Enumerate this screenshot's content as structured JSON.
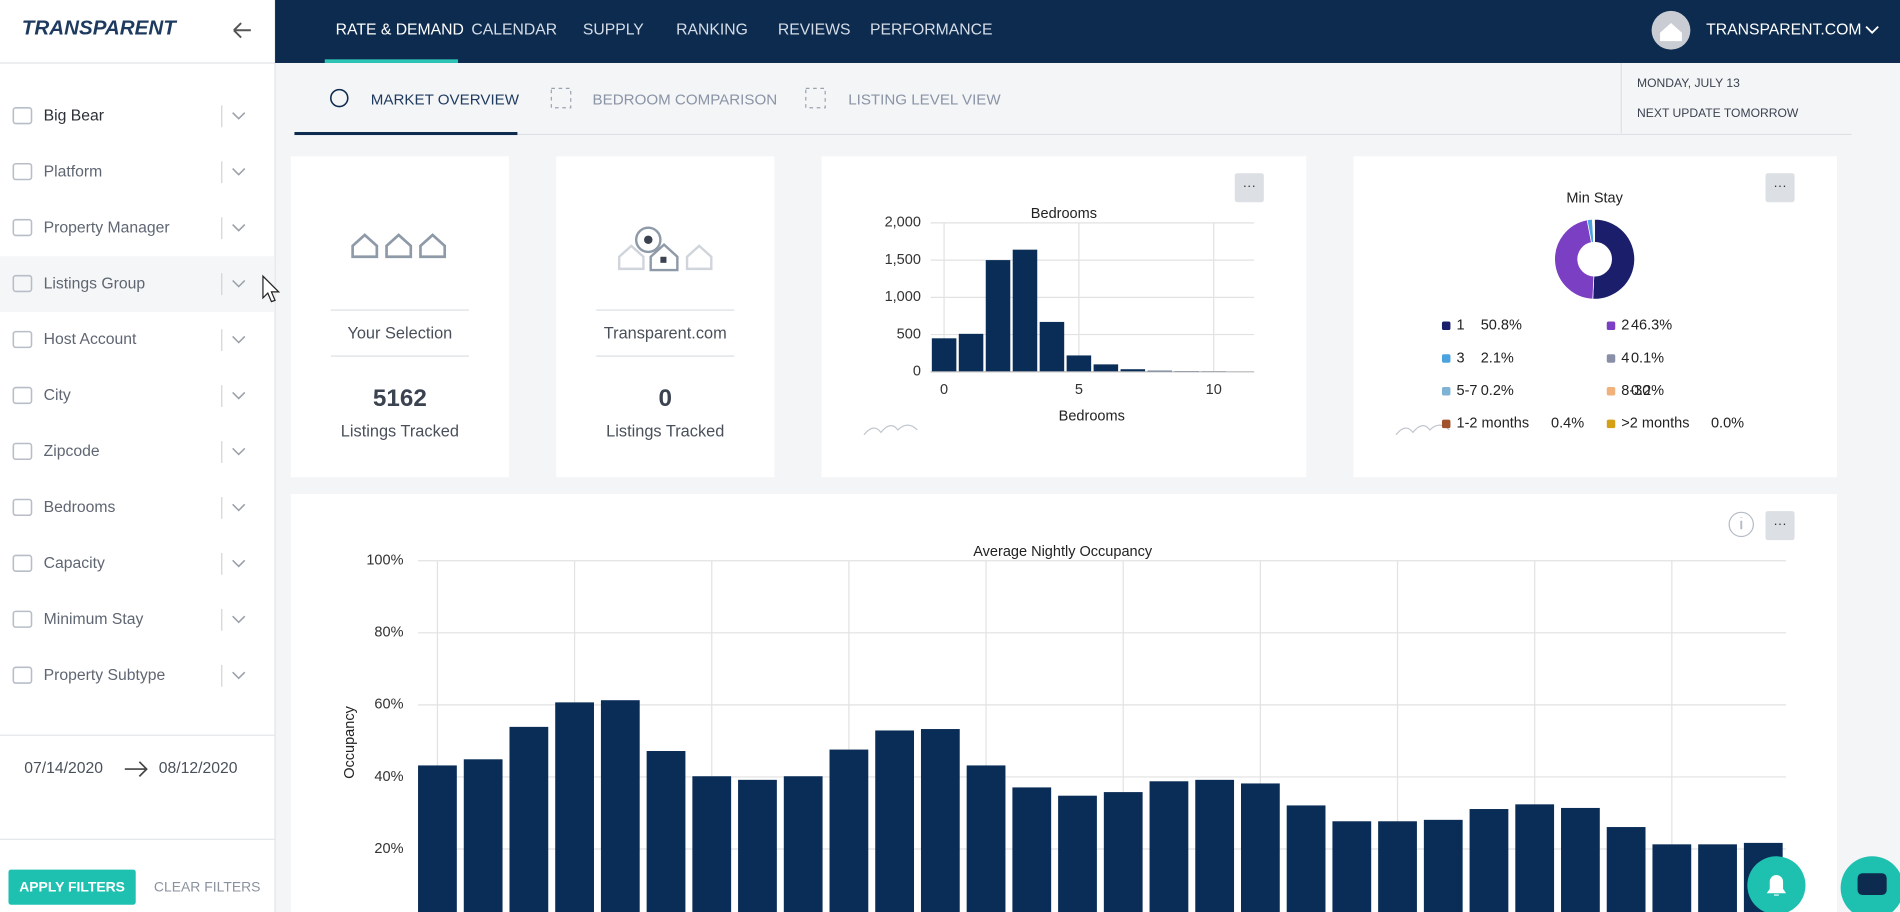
{
  "sidebar": {
    "logo": "TRANSPARENT",
    "filters": [
      "Big Bear",
      "Platform",
      "Property Manager",
      "Listings Group",
      "Host Account",
      "City",
      "Zipcode",
      "Bedrooms",
      "Capacity",
      "Minimum Stay",
      "Property Subtype"
    ],
    "date_start": "07/14/2020",
    "date_end": "08/12/2020",
    "apply": "APPLY FILTERS",
    "clear": "CLEAR FILTERS"
  },
  "nav": {
    "items": [
      "RATE & DEMAND",
      "CALENDAR",
      "SUPPLY",
      "RANKING",
      "REVIEWS",
      "PERFORMANCE"
    ],
    "account": "TRANSPARENT.COM"
  },
  "tabs": [
    "MARKET OVERVIEW",
    "BEDROOM COMPARISON",
    "LISTING LEVEL VIEW"
  ],
  "status": {
    "date": "MONDAY, JULY 13",
    "update": "NEXT UPDATE TOMORROW"
  },
  "cards": [
    {
      "label": "Your Selection",
      "value": 5162,
      "caption": "Listings Tracked"
    },
    {
      "label": "Transparent.com",
      "value": 0,
      "caption": "Listings Tracked"
    }
  ],
  "menu_button": "···",
  "chart_data": [
    {
      "type": "histogram",
      "title": "Bedrooms",
      "x_label": "Bedrooms",
      "bins": [
        -0.5,
        0.5,
        1.5,
        2.5,
        3.5,
        4.5,
        5.5,
        6.5,
        7.5,
        8.5,
        9.5,
        10.5,
        11.5
      ],
      "values": [
        450,
        510,
        1500,
        1640,
        670,
        220,
        100,
        35,
        15,
        10,
        8,
        4
      ],
      "color": "#0a2d57",
      "xlim": [
        -0.5,
        11.5
      ],
      "xticks": [
        0,
        5,
        10
      ],
      "ylim": [
        0,
        2000
      ],
      "yticks": [
        0,
        {
          "value": 500,
          "label": "500"
        },
        {
          "value": 1000,
          "label": "1,000"
        },
        {
          "value": 1500,
          "label": "1,500"
        },
        {
          "value": 2000,
          "label": "2,000"
        }
      ],
      "grid": true
    },
    {
      "type": "donut",
      "title": "Min Stay",
      "categories": [
        "1",
        "2",
        "3",
        "4",
        "5-7",
        "8-30",
        "1-2 months",
        ">2 months"
      ],
      "values": [
        50.8,
        46.3,
        2.1,
        0.1,
        0.2,
        0.2,
        0.4,
        0.0
      ],
      "value_labels": [
        "50.8%",
        "46.3%",
        "2.1%",
        "0.1%",
        "0.2%",
        "0.2%",
        "0.4%",
        "0.0%"
      ],
      "colors": [
        "#1b1f6b",
        "#7b3fc4",
        "#4aa3df",
        "#8a8fa8",
        "#7fb3d5",
        "#f0b27a",
        "#a0522d",
        "#d4a017"
      ]
    },
    {
      "type": "bar",
      "title": "Average Nightly Occupancy",
      "y_label": "Occupancy",
      "categories": [
        null,
        null,
        null,
        null,
        null,
        null,
        null,
        null,
        null,
        null,
        null,
        null,
        null,
        null,
        null,
        null,
        null,
        null,
        null,
        null,
        null,
        null,
        null,
        null,
        null,
        null,
        null,
        null,
        null,
        null
      ],
      "values": [
        43.2,
        44.9,
        53.9,
        60.7,
        61.3,
        47.2,
        40.2,
        39.2,
        40.2,
        47.6,
        52.9,
        53.3,
        43.2,
        37.1,
        34.8,
        35.8,
        38.8,
        39.2,
        38.2,
        32.1,
        27.7,
        27.7,
        28.1,
        31.1,
        32.4,
        31.4,
        26.1,
        21.3,
        21.3,
        21.7
      ],
      "color": "#0a2d57",
      "ylim": [
        0,
        100
      ],
      "yticks": [
        {
          "value": 20,
          "label": "20%"
        },
        {
          "value": 40,
          "label": "40%"
        },
        {
          "value": 60,
          "label": "60%"
        },
        {
          "value": 80,
          "label": "80%"
        },
        {
          "value": 100,
          "label": "100%"
        }
      ],
      "grid": true
    }
  ]
}
